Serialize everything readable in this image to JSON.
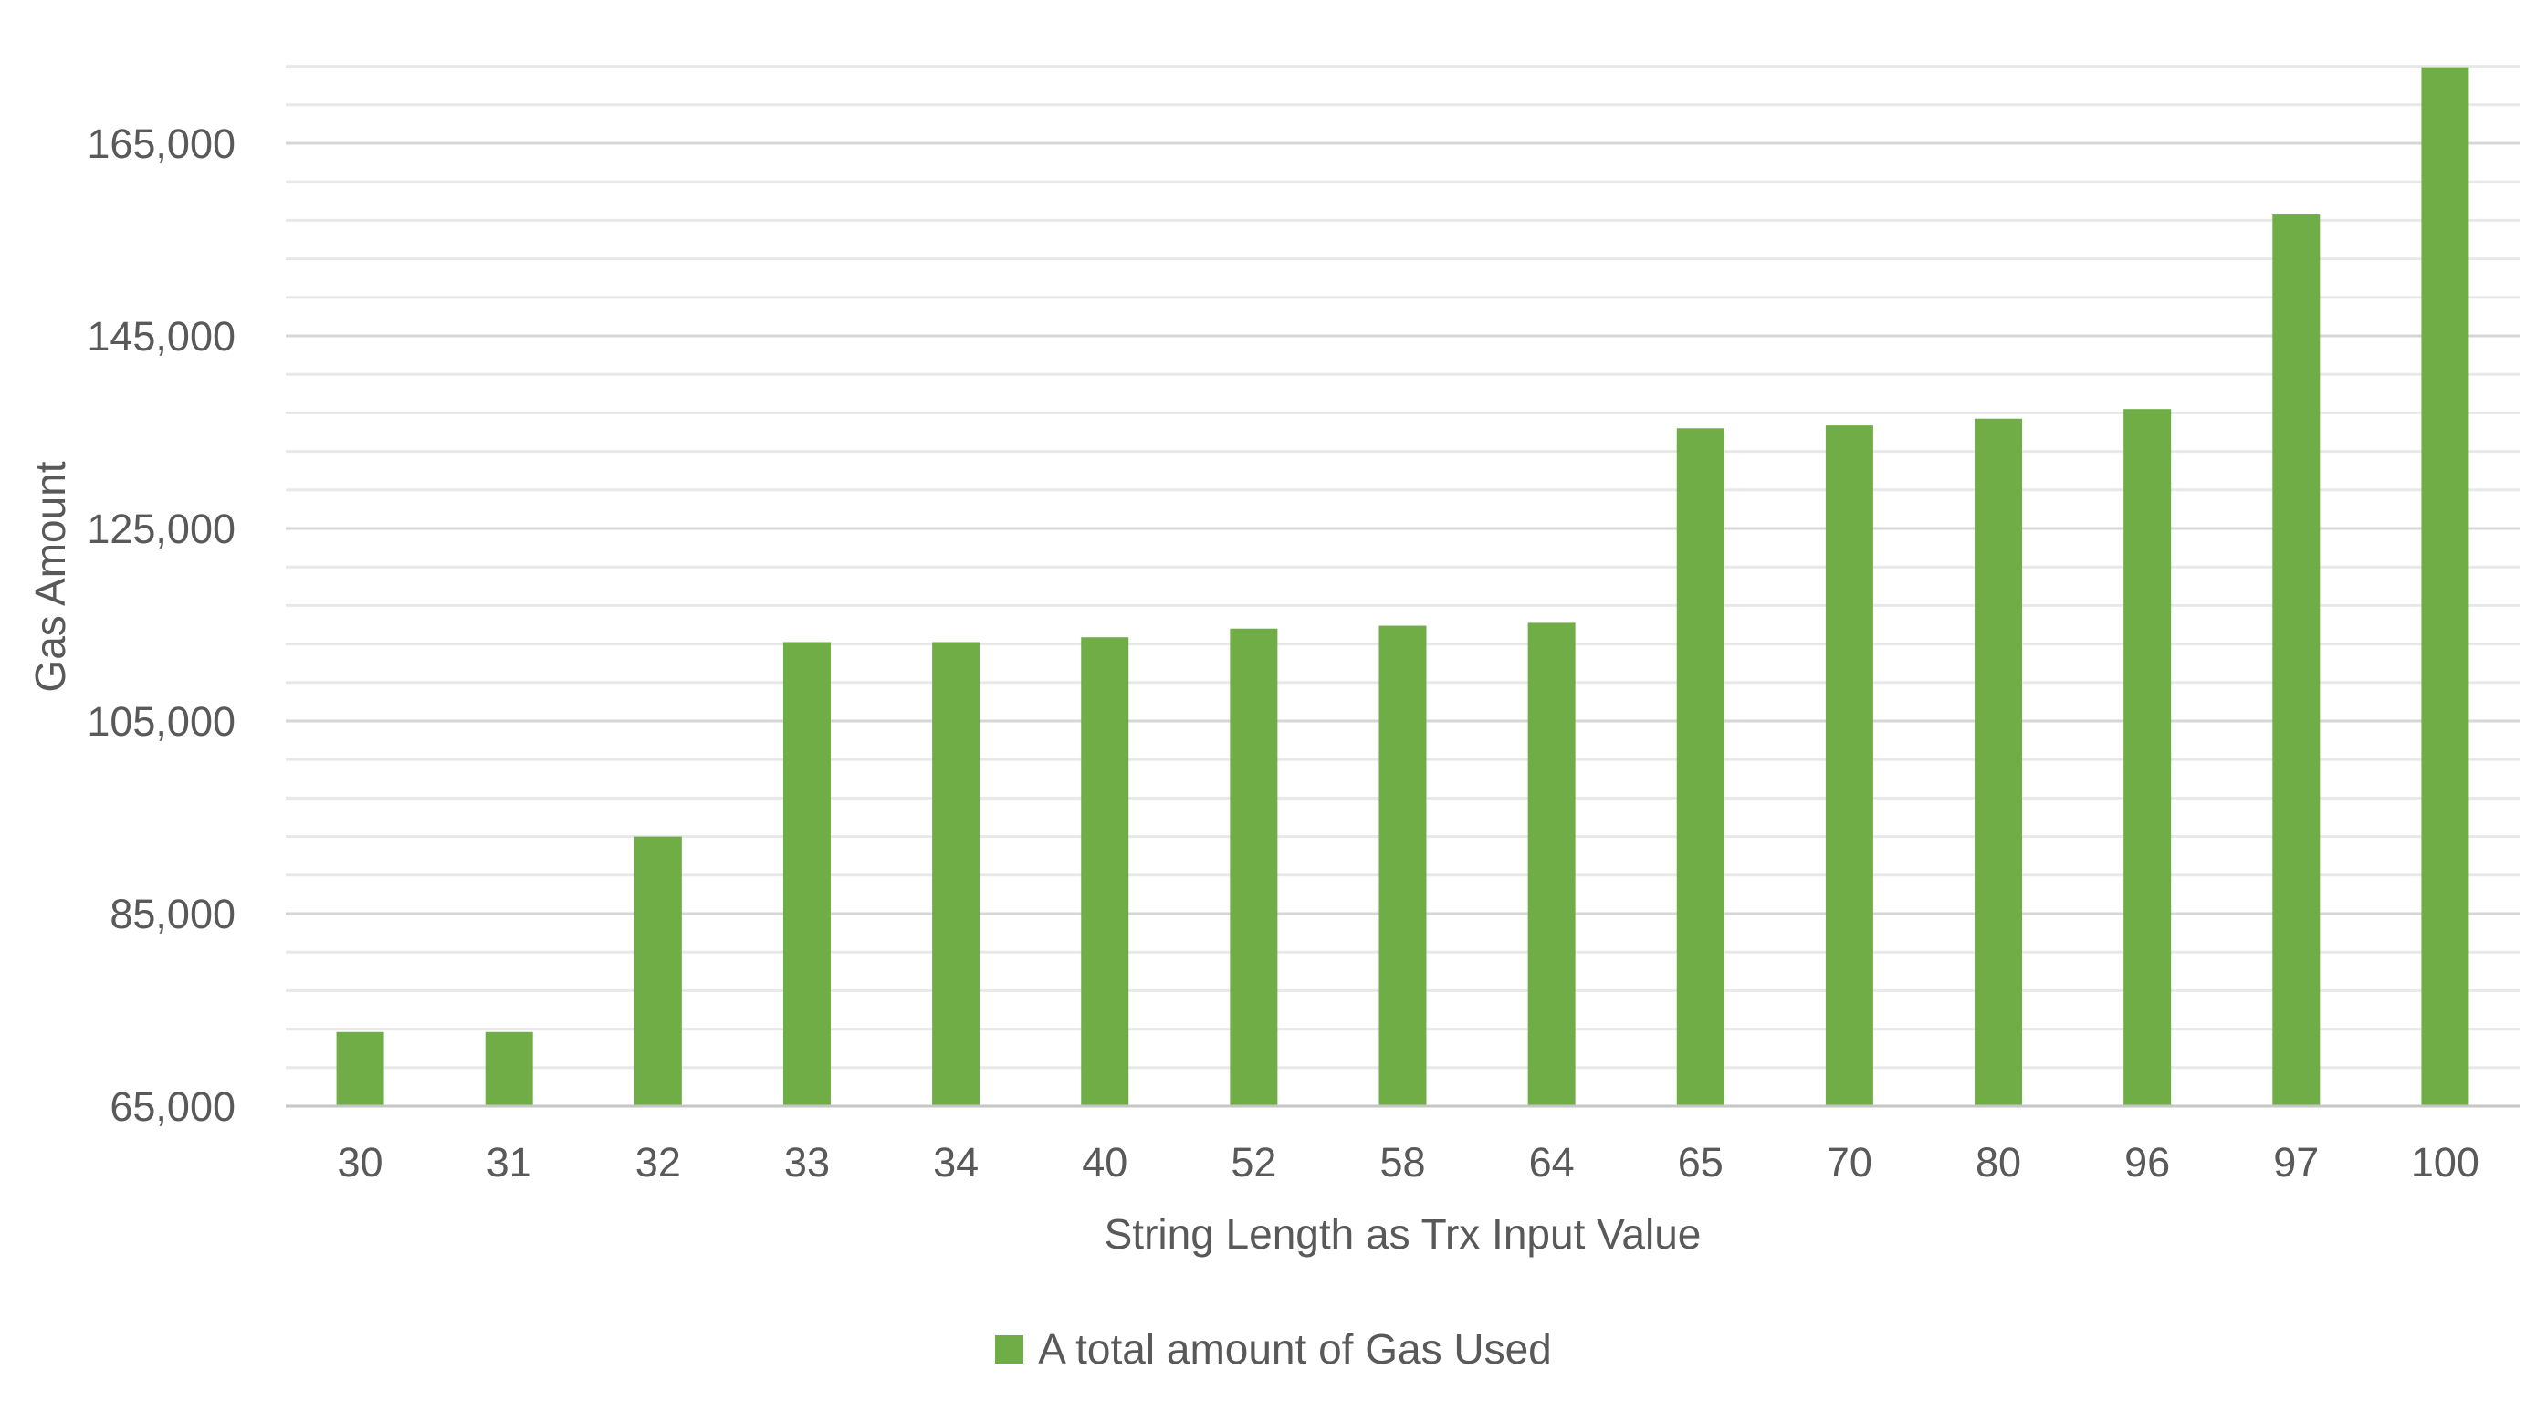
{
  "chart_data": {
    "type": "bar",
    "title": "",
    "categories": [
      "30",
      "31",
      "32",
      "33",
      "34",
      "40",
      "52",
      "58",
      "64",
      "65",
      "70",
      "80",
      "96",
      "97",
      "100"
    ],
    "series": [
      {
        "name": "A total amount of Gas Used",
        "values": [
          72700,
          72700,
          93000,
          113200,
          113200,
          113700,
          114600,
          114900,
          115200,
          135400,
          135700,
          136400,
          137400,
          157600,
          172900
        ]
      }
    ],
    "xlabel": "String Length as Trx Input Value",
    "ylabel": "Gas Amount",
    "ylim": [
      65000,
      176000
    ],
    "major_unit": 20000,
    "minor_unit": 4000,
    "yticks": [
      65000,
      85000,
      105000,
      125000,
      145000,
      165000
    ],
    "ytick_labels": [
      "65,000",
      "85,000",
      "105,000",
      "125,000",
      "145,000",
      "165,000"
    ],
    "grid": true,
    "legend_position": "bottom",
    "bar_color": "#70AD47",
    "text_color": "#595959",
    "minor_grid_color": "#E8E8E8",
    "major_grid_color": "#D6D6D6",
    "axis_line_color": "#C6C6C6"
  }
}
